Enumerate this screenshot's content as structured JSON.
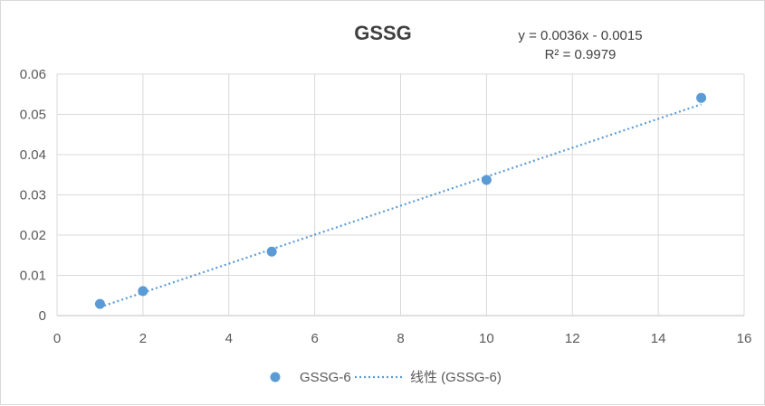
{
  "chart_data": {
    "type": "scatter",
    "title": "GSSG",
    "xlabel": "",
    "ylabel": "",
    "xlim": [
      0,
      16
    ],
    "ylim": [
      0,
      0.06
    ],
    "x_ticks": [
      "0",
      "2",
      "4",
      "6",
      "8",
      "10",
      "12",
      "14",
      "16"
    ],
    "y_ticks": [
      "0",
      "0.01",
      "0.02",
      "0.03",
      "0.04",
      "0.05",
      "0.06"
    ],
    "grid": true,
    "legend_position": "bottom",
    "series": [
      {
        "name": "GSSG-6",
        "color": "#5b9bd5",
        "x": [
          1,
          2,
          5,
          10,
          15
        ],
        "y": [
          0.0029,
          0.0061,
          0.0159,
          0.0337,
          0.0541
        ]
      }
    ],
    "trendline": {
      "type": "linear",
      "legend_label": "线性 (GSSG-6)",
      "slope": 0.0036,
      "intercept": -0.0015,
      "x_range": [
        1,
        15
      ],
      "equation_line1": "y = 0.0036x - 0.0015",
      "equation_line2": "R² = 0.9979",
      "style": "dotted",
      "color": "#5b9bd5"
    }
  }
}
